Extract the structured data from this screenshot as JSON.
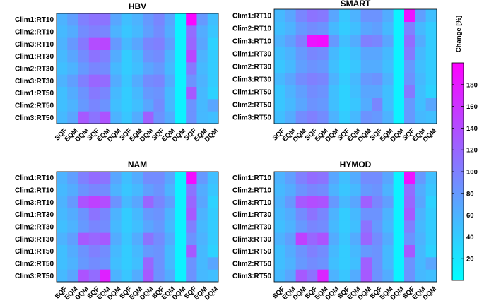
{
  "chart_data": {
    "type": "heatmap",
    "panels": [
      {
        "title": "HBV",
        "rows": [
          "Clim1:RT10",
          "Clim2:RT10",
          "Clim3:RT10",
          "Clim1:RT30",
          "Clim2:RT30",
          "Clim3:RT30",
          "Clim1:RT50",
          "Clim2:RT50",
          "Clim3:RT50"
        ],
        "columns": [
          "SQF",
          "EQM",
          "DQM",
          "SQF",
          "EQM",
          "DQM",
          "SQF",
          "EQM",
          "DQM",
          "SQF",
          "EQM",
          "DQM",
          "SQF",
          "EQM",
          "DQM"
        ],
        "values": [
          [
            60,
            75,
            100,
            110,
            110,
            70,
            50,
            60,
            80,
            95,
            70,
            10,
            195,
            80,
            50
          ],
          [
            55,
            65,
            90,
            100,
            95,
            60,
            45,
            55,
            75,
            90,
            65,
            10,
            115,
            65,
            45
          ],
          [
            60,
            80,
            105,
            140,
            145,
            80,
            55,
            70,
            95,
            100,
            75,
            10,
            120,
            70,
            35
          ],
          [
            55,
            70,
            90,
            110,
            100,
            65,
            40,
            55,
            85,
            90,
            60,
            10,
            145,
            60,
            40
          ],
          [
            50,
            60,
            80,
            95,
            90,
            55,
            40,
            50,
            70,
            80,
            55,
            10,
            105,
            55,
            40
          ],
          [
            60,
            75,
            100,
            120,
            115,
            65,
            45,
            65,
            90,
            95,
            65,
            10,
            85,
            60,
            40
          ],
          [
            50,
            65,
            85,
            105,
            95,
            55,
            40,
            55,
            80,
            85,
            55,
            10,
            130,
            55,
            35
          ],
          [
            50,
            60,
            80,
            95,
            85,
            50,
            40,
            50,
            70,
            90,
            55,
            10,
            85,
            55,
            70
          ],
          [
            55,
            70,
            130,
            110,
            135,
            60,
            45,
            65,
            125,
            85,
            65,
            10,
            85,
            55,
            50
          ]
        ]
      },
      {
        "title": "SMART",
        "rows": [
          "Clim1:RT10",
          "Clim2:RT10",
          "Clim3:RT10",
          "Clim1:RT30",
          "Clim2:RT30",
          "Clim3:RT30",
          "Clim1:RT50",
          "Clim2:RT50",
          "Clim3:RT50"
        ],
        "columns": [
          "SQF",
          "EQM",
          "DQM",
          "SQF",
          "EQM",
          "DQM",
          "SQF",
          "EQM",
          "DQM",
          "SQF",
          "EQM",
          "DQM",
          "SQF",
          "EQM",
          "DQM"
        ],
        "values": [
          [
            55,
            70,
            95,
            110,
            105,
            70,
            45,
            60,
            85,
            85,
            65,
            10,
            185,
            75,
            50
          ],
          [
            50,
            60,
            80,
            90,
            85,
            55,
            40,
            50,
            70,
            75,
            55,
            10,
            100,
            55,
            40
          ],
          [
            60,
            75,
            100,
            185,
            190,
            80,
            50,
            65,
            100,
            95,
            70,
            10,
            115,
            65,
            40
          ],
          [
            50,
            60,
            80,
            95,
            90,
            55,
            40,
            50,
            70,
            70,
            55,
            10,
            105,
            55,
            40
          ],
          [
            45,
            55,
            75,
            85,
            80,
            50,
            35,
            45,
            65,
            65,
            50,
            10,
            80,
            50,
            40
          ],
          [
            55,
            70,
            90,
            100,
            95,
            60,
            40,
            55,
            80,
            85,
            60,
            10,
            85,
            55,
            40
          ],
          [
            45,
            60,
            75,
            90,
            85,
            50,
            35,
            50,
            70,
            70,
            50,
            10,
            105,
            50,
            35
          ],
          [
            45,
            55,
            70,
            85,
            80,
            50,
            35,
            45,
            65,
            95,
            50,
            10,
            80,
            50,
            70
          ],
          [
            50,
            65,
            90,
            100,
            90,
            60,
            40,
            55,
            85,
            80,
            60,
            10,
            80,
            55,
            50
          ]
        ]
      },
      {
        "title": "NAM",
        "rows": [
          "Clim1:RT10",
          "Clim2:RT10",
          "Clim3:RT10",
          "Clim1:RT30",
          "Clim2:RT30",
          "Clim3:RT30",
          "Clim1:RT50",
          "Clim2:RT50",
          "Clim3:RT50"
        ],
        "columns": [
          "SQF",
          "EQM",
          "DQM",
          "SQF",
          "EQM",
          "DQM",
          "SQF",
          "EQM",
          "DQM",
          "SQF",
          "EQM",
          "DQM",
          "SQF",
          "EQM",
          "DQM"
        ],
        "values": [
          [
            60,
            75,
            100,
            115,
            110,
            70,
            50,
            65,
            90,
            90,
            70,
            10,
            190,
            80,
            50
          ],
          [
            55,
            65,
            85,
            95,
            90,
            60,
            45,
            55,
            75,
            85,
            60,
            10,
            110,
            65,
            45
          ],
          [
            60,
            80,
            135,
            150,
            140,
            85,
            55,
            70,
            120,
            95,
            75,
            10,
            120,
            70,
            35
          ],
          [
            55,
            65,
            85,
            110,
            95,
            60,
            40,
            55,
            80,
            85,
            60,
            10,
            130,
            60,
            40
          ],
          [
            50,
            60,
            80,
            95,
            90,
            55,
            40,
            50,
            70,
            80,
            55,
            10,
            100,
            55,
            40
          ],
          [
            60,
            75,
            130,
            120,
            130,
            65,
            45,
            65,
            110,
            90,
            65,
            10,
            85,
            60,
            40
          ],
          [
            50,
            65,
            85,
            100,
            90,
            55,
            40,
            55,
            80,
            85,
            55,
            10,
            130,
            55,
            35
          ],
          [
            50,
            60,
            80,
            90,
            85,
            50,
            40,
            50,
            120,
            85,
            55,
            10,
            85,
            55,
            70
          ],
          [
            55,
            70,
            135,
            115,
            175,
            60,
            45,
            65,
            130,
            85,
            65,
            10,
            85,
            55,
            50
          ]
        ]
      },
      {
        "title": "HYMOD",
        "rows": [
          "Clim1:RT10",
          "Clim2:RT10",
          "Clim3:RT10",
          "Clim1:RT30",
          "Clim2:RT30",
          "Clim3:RT30",
          "Clim1:RT50",
          "Clim2:RT50",
          "Clim3:RT50"
        ],
        "columns": [
          "SQF",
          "EQM",
          "DQM",
          "SQF",
          "EQM",
          "DQM",
          "SQF",
          "EQM",
          "DQM",
          "SQF",
          "EQM",
          "DQM",
          "SQF",
          "EQM",
          "DQM"
        ],
        "values": [
          [
            60,
            75,
            100,
            115,
            110,
            70,
            50,
            65,
            90,
            90,
            70,
            10,
            185,
            80,
            50
          ],
          [
            55,
            65,
            85,
            95,
            90,
            60,
            45,
            55,
            80,
            85,
            60,
            10,
            115,
            65,
            45
          ],
          [
            60,
            80,
            130,
            140,
            135,
            80,
            55,
            70,
            125,
            95,
            75,
            10,
            120,
            70,
            35
          ],
          [
            55,
            65,
            90,
            110,
            95,
            60,
            40,
            55,
            85,
            85,
            60,
            10,
            130,
            60,
            40
          ],
          [
            50,
            60,
            80,
            95,
            90,
            55,
            40,
            50,
            110,
            80,
            55,
            10,
            100,
            55,
            40
          ],
          [
            60,
            75,
            150,
            120,
            135,
            65,
            45,
            65,
            120,
            90,
            65,
            10,
            85,
            60,
            40
          ],
          [
            50,
            65,
            85,
            100,
            90,
            55,
            40,
            55,
            80,
            85,
            55,
            10,
            130,
            55,
            35
          ],
          [
            50,
            60,
            80,
            90,
            85,
            50,
            40,
            50,
            125,
            85,
            55,
            10,
            85,
            55,
            70
          ],
          [
            55,
            70,
            130,
            110,
            170,
            60,
            45,
            65,
            130,
            85,
            65,
            10,
            85,
            55,
            50
          ]
        ]
      }
    ],
    "colorbar": {
      "label": "Change [%]",
      "ticks": [
        20,
        40,
        60,
        80,
        100,
        120,
        140,
        160,
        180
      ],
      "range": [
        0,
        200
      ],
      "colormap": "cool",
      "low_color": "#00ffff",
      "high_color": "#ff00ff"
    }
  }
}
